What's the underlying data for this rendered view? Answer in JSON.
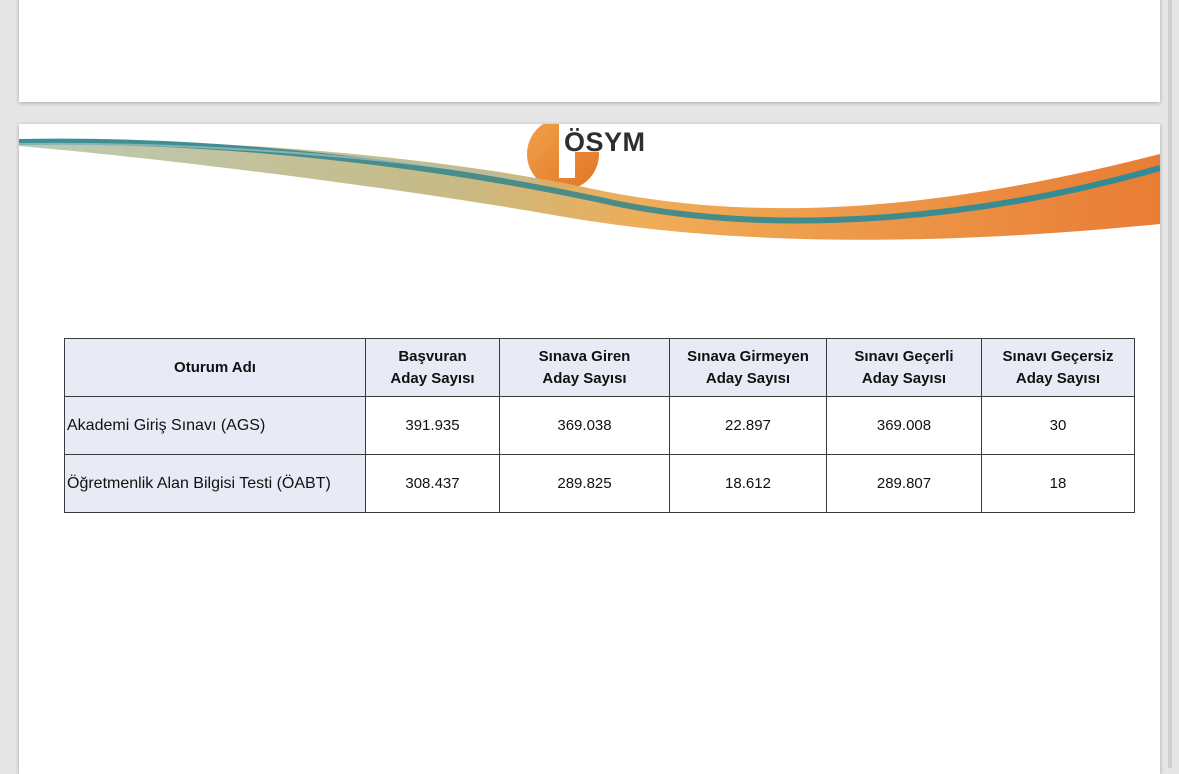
{
  "logo": {
    "text": "ÖSYM"
  },
  "table": {
    "headers": [
      {
        "line1": "Oturum Adı",
        "line2": ""
      },
      {
        "line1": "Başvuran",
        "line2": "Aday Sayısı"
      },
      {
        "line1": "Sınava Giren",
        "line2": "Aday Sayısı"
      },
      {
        "line1": "Sınava Girmeyen",
        "line2": "Aday Sayısı"
      },
      {
        "line1": "Sınavı Geçerli",
        "line2": "Aday Sayısı"
      },
      {
        "line1": "Sınavı Geçersiz",
        "line2": "Aday Sayısı"
      }
    ],
    "rows": [
      {
        "name": "Akademi Giriş Sınavı (AGS)",
        "cells": [
          "391.935",
          "369.038",
          "22.897",
          "369.008",
          "30"
        ]
      },
      {
        "name": "Öğretmenlik Alan Bilgisi Testi (ÖABT)",
        "cells": [
          "308.437",
          "289.825",
          "18.612",
          "289.807",
          "18"
        ]
      }
    ]
  },
  "colors": {
    "brand_orange": "#e8832e",
    "brand_teal": "#3f8f96",
    "header_fill": "#e8ebf5"
  }
}
